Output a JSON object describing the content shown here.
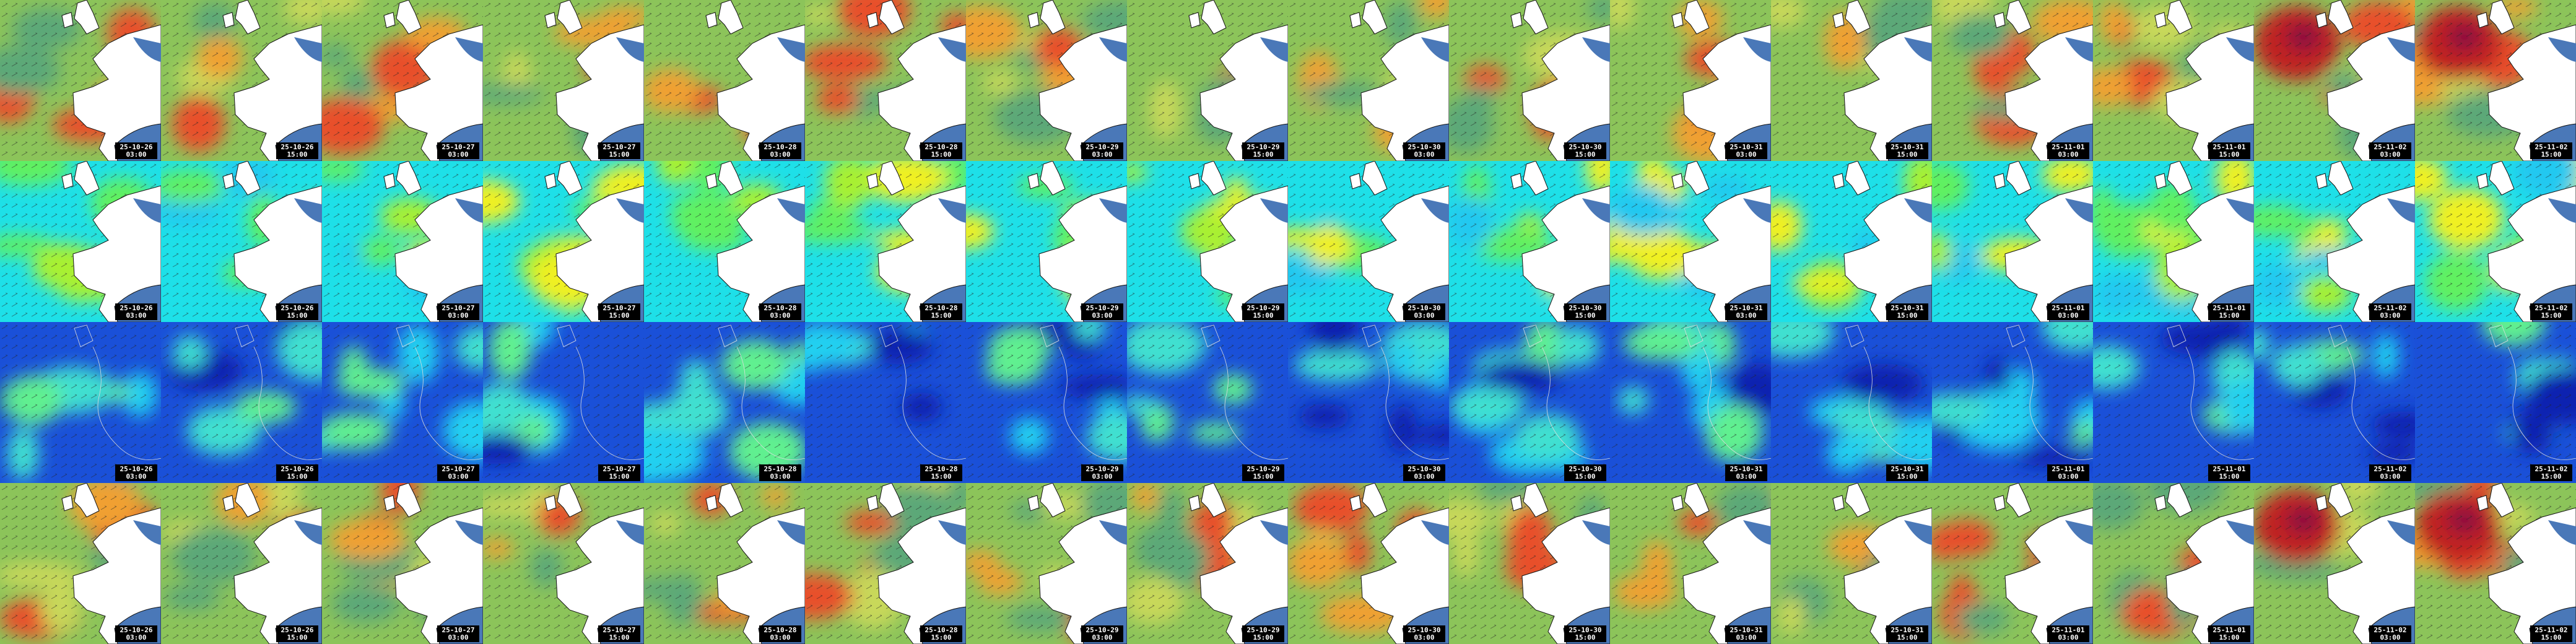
{
  "rows": [
    {
      "tiles": [
        {
          "date": "25-10-26",
          "time": "03:00"
        },
        {
          "date": "25-10-26",
          "time": "15:00"
        },
        {
          "date": "25-10-27",
          "time": "03:00"
        },
        {
          "date": "25-10-27",
          "time": "15:00"
        },
        {
          "date": "25-10-28",
          "time": "03:00"
        },
        {
          "date": "25-10-28",
          "time": "15:00"
        },
        {
          "date": "25-10-29",
          "time": "03:00"
        },
        {
          "date": "25-10-29",
          "time": "15:00"
        },
        {
          "date": "25-10-30",
          "time": "03:00"
        },
        {
          "date": "25-10-30",
          "time": "15:00"
        },
        {
          "date": "25-10-31",
          "time": "03:00"
        },
        {
          "date": "25-10-31",
          "time": "15:00"
        },
        {
          "date": "25-11-01",
          "time": "03:00"
        },
        {
          "date": "25-11-01",
          "time": "15:00"
        },
        {
          "date": "25-11-02",
          "time": "03:00"
        },
        {
          "date": "25-11-02",
          "time": "15:00"
        }
      ]
    },
    {
      "tiles": [
        {
          "date": "25-10-26",
          "time": "03:00"
        },
        {
          "date": "25-10-26",
          "time": "15:00"
        },
        {
          "date": "25-10-27",
          "time": "03:00"
        },
        {
          "date": "25-10-27",
          "time": "15:00"
        },
        {
          "date": "25-10-28",
          "time": "03:00"
        },
        {
          "date": "25-10-28",
          "time": "15:00"
        },
        {
          "date": "25-10-29",
          "time": "03:00"
        },
        {
          "date": "25-10-29",
          "time": "15:00"
        },
        {
          "date": "25-10-30",
          "time": "03:00"
        },
        {
          "date": "25-10-30",
          "time": "15:00"
        },
        {
          "date": "25-10-31",
          "time": "03:00"
        },
        {
          "date": "25-10-31",
          "time": "15:00"
        },
        {
          "date": "25-11-01",
          "time": "03:00"
        },
        {
          "date": "25-11-01",
          "time": "15:00"
        },
        {
          "date": "25-11-02",
          "time": "03:00"
        },
        {
          "date": "25-11-02",
          "time": "15:00"
        }
      ]
    },
    {
      "tiles": [
        {
          "date": "25-10-26",
          "time": "03:00"
        },
        {
          "date": "25-10-26",
          "time": "15:00"
        },
        {
          "date": "25-10-27",
          "time": "03:00"
        },
        {
          "date": "25-10-27",
          "time": "15:00"
        },
        {
          "date": "25-10-28",
          "time": "03:00"
        },
        {
          "date": "25-10-28",
          "time": "15:00"
        },
        {
          "date": "25-10-29",
          "time": "03:00"
        },
        {
          "date": "25-10-29",
          "time": "15:00"
        },
        {
          "date": "25-10-30",
          "time": "03:00"
        },
        {
          "date": "25-10-30",
          "time": "15:00"
        },
        {
          "date": "25-10-31",
          "time": "03:00"
        },
        {
          "date": "25-10-31",
          "time": "15:00"
        },
        {
          "date": "25-11-01",
          "time": "03:00"
        },
        {
          "date": "25-11-01",
          "time": "15:00"
        },
        {
          "date": "25-11-02",
          "time": "03:00"
        },
        {
          "date": "25-11-02",
          "time": "15:00"
        }
      ]
    },
    {
      "tiles": [
        {
          "date": "25-10-26",
          "time": "03:00"
        },
        {
          "date": "25-10-26",
          "time": "15:00"
        },
        {
          "date": "25-10-27",
          "time": "03:00"
        },
        {
          "date": "25-10-27",
          "time": "15:00"
        },
        {
          "date": "25-10-28",
          "time": "03:00"
        },
        {
          "date": "25-10-28",
          "time": "15:00"
        },
        {
          "date": "25-10-29",
          "time": "03:00"
        },
        {
          "date": "25-10-29",
          "time": "15:00"
        },
        {
          "date": "25-10-30",
          "time": "03:00"
        },
        {
          "date": "25-10-30",
          "time": "15:00"
        },
        {
          "date": "25-10-31",
          "time": "03:00"
        },
        {
          "date": "25-10-31",
          "time": "15:00"
        },
        {
          "date": "25-11-01",
          "time": "03:00"
        },
        {
          "date": "25-11-01",
          "time": "15:00"
        },
        {
          "date": "25-11-02",
          "time": "03:00"
        },
        {
          "date": "25-11-02",
          "time": "15:00"
        }
      ]
    }
  ]
}
